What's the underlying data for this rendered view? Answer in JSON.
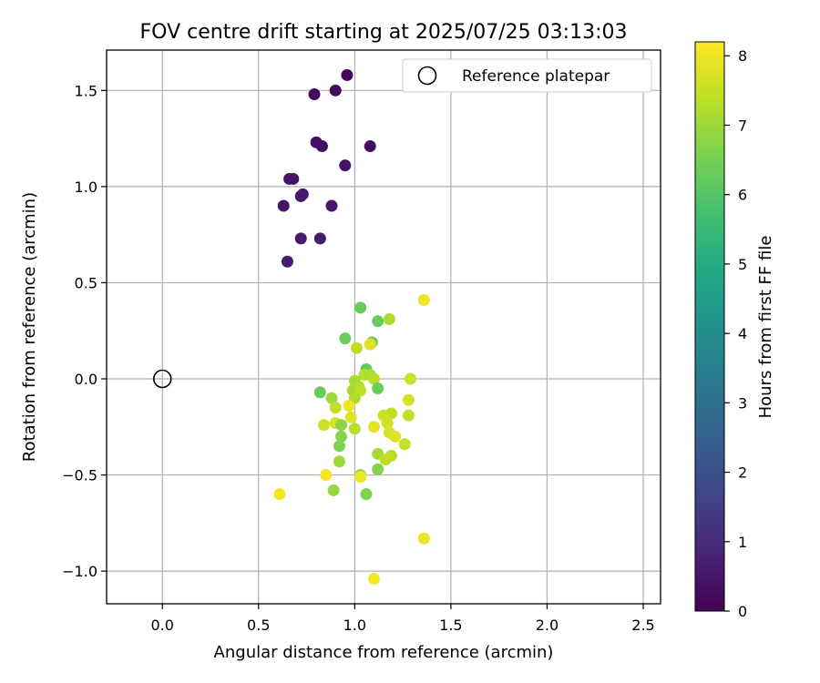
{
  "chart_data": {
    "type": "scatter",
    "title": "FOV centre drift starting at 2025/07/25 03:13:03",
    "xlabel": "Angular distance from reference (arcmin)",
    "ylabel": "Rotation from reference (arcmin)",
    "xlim": [
      -0.29,
      2.59
    ],
    "ylim": [
      -1.17,
      1.71
    ],
    "xticks": [
      0.0,
      0.5,
      1.0,
      1.5,
      2.0,
      2.5
    ],
    "xtick_labels": [
      "0.0",
      "0.5",
      "1.0",
      "1.5",
      "2.0",
      "2.5"
    ],
    "yticks": [
      -1.0,
      -0.5,
      0.0,
      0.5,
      1.0,
      1.5
    ],
    "ytick_labels": [
      "−1.0",
      "−0.5",
      "0.0",
      "0.5",
      "1.0",
      "1.5"
    ],
    "grid": true,
    "legend": {
      "placement": "top-right",
      "label": "Reference platepar",
      "marker": "open-circle"
    },
    "reference_point": {
      "x": 0.0,
      "y": 0.0
    },
    "colorbar": {
      "label": "Hours from first FF file",
      "min": 0,
      "max": 8.2,
      "ticks": [
        0,
        1,
        2,
        3,
        4,
        5,
        6,
        7,
        8
      ],
      "tick_labels": [
        "0",
        "1",
        "2",
        "3",
        "4",
        "5",
        "6",
        "7",
        "8"
      ],
      "colormap": "viridis"
    },
    "points": [
      {
        "x": 0.96,
        "y": 1.58,
        "hours": 0.1
      },
      {
        "x": 0.79,
        "y": 1.48,
        "hours": 0.2
      },
      {
        "x": 0.9,
        "y": 1.5,
        "hours": 0.2
      },
      {
        "x": 0.8,
        "y": 1.23,
        "hours": 0.3
      },
      {
        "x": 0.83,
        "y": 1.21,
        "hours": 0.3
      },
      {
        "x": 1.08,
        "y": 1.21,
        "hours": 0.3
      },
      {
        "x": 0.95,
        "y": 1.11,
        "hours": 0.4
      },
      {
        "x": 0.66,
        "y": 1.04,
        "hours": 0.4
      },
      {
        "x": 0.68,
        "y": 1.04,
        "hours": 0.4
      },
      {
        "x": 0.72,
        "y": 0.95,
        "hours": 0.5
      },
      {
        "x": 0.73,
        "y": 0.96,
        "hours": 0.5
      },
      {
        "x": 0.63,
        "y": 0.9,
        "hours": 0.5
      },
      {
        "x": 0.88,
        "y": 0.9,
        "hours": 0.5
      },
      {
        "x": 0.72,
        "y": 0.73,
        "hours": 0.6
      },
      {
        "x": 0.82,
        "y": 0.73,
        "hours": 0.6
      },
      {
        "x": 0.65,
        "y": 0.61,
        "hours": 0.6
      },
      {
        "x": 1.03,
        "y": 0.37,
        "hours": 6.3
      },
      {
        "x": 1.12,
        "y": 0.3,
        "hours": 6.3
      },
      {
        "x": 1.18,
        "y": 0.31,
        "hours": 7.2
      },
      {
        "x": 1.36,
        "y": 0.41,
        "hours": 8.0
      },
      {
        "x": 0.95,
        "y": 0.21,
        "hours": 6.4
      },
      {
        "x": 1.09,
        "y": 0.19,
        "hours": 6.3
      },
      {
        "x": 1.08,
        "y": 0.18,
        "hours": 7.8
      },
      {
        "x": 1.01,
        "y": 0.16,
        "hours": 7.4
      },
      {
        "x": 1.06,
        "y": 0.05,
        "hours": 6.2
      },
      {
        "x": 1.05,
        "y": 0.02,
        "hours": 7.3
      },
      {
        "x": 1.08,
        "y": 0.02,
        "hours": 7.2
      },
      {
        "x": 1.1,
        "y": 0.0,
        "hours": 7.3
      },
      {
        "x": 1.0,
        "y": -0.01,
        "hours": 7.1
      },
      {
        "x": 1.29,
        "y": 0.0,
        "hours": 7.6
      },
      {
        "x": 1.12,
        "y": -0.05,
        "hours": 6.3
      },
      {
        "x": 1.02,
        "y": -0.04,
        "hours": 7.2
      },
      {
        "x": 0.99,
        "y": -0.06,
        "hours": 7.1
      },
      {
        "x": 1.03,
        "y": -0.06,
        "hours": 7.4
      },
      {
        "x": 0.82,
        "y": -0.07,
        "hours": 6.3
      },
      {
        "x": 1.0,
        "y": -0.1,
        "hours": 7.2
      },
      {
        "x": 0.88,
        "y": -0.1,
        "hours": 7.0
      },
      {
        "x": 1.28,
        "y": -0.11,
        "hours": 7.7
      },
      {
        "x": 0.97,
        "y": -0.14,
        "hours": 8.0
      },
      {
        "x": 0.9,
        "y": -0.15,
        "hours": 7.4
      },
      {
        "x": 1.19,
        "y": -0.18,
        "hours": 7.4
      },
      {
        "x": 1.28,
        "y": -0.19,
        "hours": 7.4
      },
      {
        "x": 1.15,
        "y": -0.19,
        "hours": 7.6
      },
      {
        "x": 0.98,
        "y": -0.2,
        "hours": 7.8
      },
      {
        "x": 0.9,
        "y": -0.23,
        "hours": 7.7
      },
      {
        "x": 0.93,
        "y": -0.24,
        "hours": 6.8
      },
      {
        "x": 0.84,
        "y": -0.24,
        "hours": 7.6
      },
      {
        "x": 1.17,
        "y": -0.23,
        "hours": 7.6
      },
      {
        "x": 1.1,
        "y": -0.25,
        "hours": 7.9
      },
      {
        "x": 1.0,
        "y": -0.26,
        "hours": 7.3
      },
      {
        "x": 1.18,
        "y": -0.28,
        "hours": 7.7
      },
      {
        "x": 1.21,
        "y": -0.3,
        "hours": 7.8
      },
      {
        "x": 0.93,
        "y": -0.3,
        "hours": 6.7
      },
      {
        "x": 1.26,
        "y": -0.34,
        "hours": 7.5
      },
      {
        "x": 0.92,
        "y": -0.35,
        "hours": 6.6
      },
      {
        "x": 1.12,
        "y": -0.39,
        "hours": 7.1
      },
      {
        "x": 1.19,
        "y": -0.4,
        "hours": 7.3
      },
      {
        "x": 1.16,
        "y": -0.42,
        "hours": 7.4
      },
      {
        "x": 0.92,
        "y": -0.43,
        "hours": 7.0
      },
      {
        "x": 1.12,
        "y": -0.47,
        "hours": 6.7
      },
      {
        "x": 1.03,
        "y": -0.5,
        "hours": 6.9
      },
      {
        "x": 1.03,
        "y": -0.51,
        "hours": 8.0
      },
      {
        "x": 0.85,
        "y": -0.5,
        "hours": 8.1
      },
      {
        "x": 0.89,
        "y": -0.58,
        "hours": 6.9
      },
      {
        "x": 1.06,
        "y": -0.6,
        "hours": 6.6
      },
      {
        "x": 0.61,
        "y": -0.6,
        "hours": 8.1
      },
      {
        "x": 1.36,
        "y": -0.83,
        "hours": 8.0
      },
      {
        "x": 1.1,
        "y": -1.04,
        "hours": 8.1
      }
    ]
  }
}
